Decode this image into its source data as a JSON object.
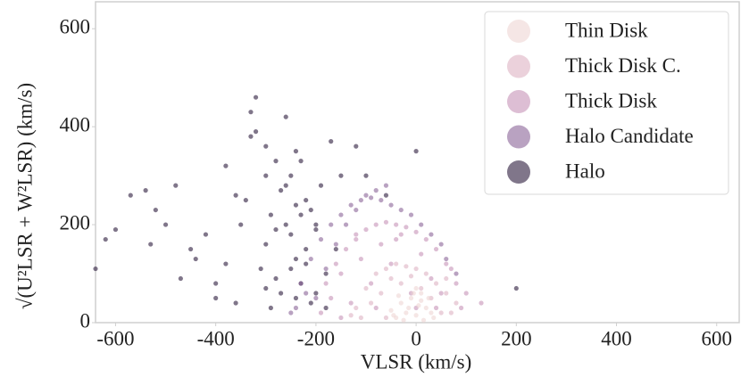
{
  "chart_data": {
    "type": "scatter",
    "x_label": "VLSR (km/s)",
    "y_label": "√(U²LSR + W²LSR) (km/s)",
    "xlim": [
      -640,
      645
    ],
    "ylim": [
      0,
      655
    ],
    "xticks": [
      -600,
      -400,
      -200,
      0,
      200,
      400,
      600
    ],
    "yticks": [
      0,
      200,
      400,
      600
    ],
    "grid": false,
    "legend": "upper right",
    "series": [
      {
        "name": "Thin Disk",
        "color": "#efd6d3",
        "x": [
          -40,
          -20,
          0,
          20,
          -30,
          -10,
          10,
          30,
          -50,
          -5,
          15,
          -25,
          5,
          25,
          -45,
          0,
          35,
          -15,
          10,
          -35
        ],
        "values": [
          10,
          20,
          15,
          30,
          40,
          50,
          45,
          20,
          25,
          60,
          5,
          5,
          35,
          50,
          15,
          70,
          10,
          30,
          60,
          55
        ]
      },
      {
        "name": "Thick Disk C.",
        "color": "#deb2c3",
        "x": [
          -120,
          -100,
          -80,
          -60,
          -40,
          -20,
          0,
          20,
          40,
          60,
          70,
          -110,
          -90,
          -70,
          -50,
          50,
          30,
          10,
          -10,
          -30,
          80,
          -130,
          60,
          -60
        ],
        "values": [
          30,
          70,
          100,
          110,
          120,
          115,
          110,
          100,
          80,
          60,
          20,
          10,
          40,
          60,
          90,
          20,
          50,
          70,
          95,
          80,
          40,
          15,
          90,
          10
        ]
      },
      {
        "name": "Thick Disk",
        "color": "#c693b8",
        "x": [
          -190,
          -180,
          -160,
          -140,
          -120,
          -100,
          -80,
          -60,
          -40,
          -20,
          0,
          20,
          40,
          60,
          80,
          90,
          -170,
          -150,
          -130,
          -110,
          -90,
          -70,
          -50,
          -30,
          -10,
          10,
          30,
          50,
          70,
          -150,
          -120,
          -80,
          -40,
          0,
          40,
          100,
          130
        ],
        "values": [
          20,
          80,
          120,
          150,
          170,
          190,
          200,
          205,
          200,
          195,
          185,
          170,
          150,
          120,
          80,
          30,
          50,
          100,
          40,
          130,
          80,
          160,
          120,
          180,
          60,
          140,
          90,
          60,
          110,
          10,
          180,
          30,
          170,
          30,
          30,
          60,
          40
        ]
      },
      {
        "name": "Halo Candidate",
        "color": "#8a6497",
        "x": [
          -250,
          -230,
          -210,
          -190,
          -170,
          -150,
          -130,
          -110,
          -90,
          -70,
          -50,
          -30,
          -10,
          10,
          30,
          50,
          -200,
          -180,
          -160,
          -140,
          -120,
          -100,
          -240,
          -220,
          60,
          80,
          -80,
          -60
        ],
        "values": [
          20,
          80,
          130,
          170,
          200,
          220,
          240,
          250,
          255,
          250,
          240,
          230,
          220,
          200,
          180,
          160,
          50,
          110,
          160,
          200,
          230,
          260,
          30,
          60,
          130,
          100,
          270,
          280
        ]
      },
      {
        "name": "Halo",
        "color": "#2c1a3c",
        "x": [
          -640,
          -620,
          -600,
          -570,
          -540,
          -520,
          -500,
          -480,
          -450,
          -420,
          -400,
          -380,
          -360,
          -340,
          -320,
          -300,
          -280,
          -260,
          -240,
          -220,
          -200,
          -180,
          -160,
          -330,
          -310,
          -290,
          -270,
          -250,
          -230,
          -210,
          -300,
          -280,
          -260,
          -240,
          -220,
          -200,
          -350,
          -380,
          -400,
          -270,
          -250,
          -230,
          -320,
          -290,
          -190,
          -170,
          -150,
          -260,
          -240,
          -220,
          -300,
          -330,
          -360,
          -210,
          -280,
          -250,
          -230,
          -440,
          -470,
          -530,
          -300,
          -240,
          -200,
          -180,
          0,
          200,
          -120,
          -100,
          -60
        ],
        "values": [
          110,
          170,
          190,
          260,
          270,
          230,
          200,
          280,
          150,
          180,
          80,
          320,
          40,
          250,
          460,
          300,
          90,
          200,
          350,
          120,
          60,
          30,
          150,
          380,
          110,
          220,
          270,
          180,
          80,
          40,
          160,
          330,
          280,
          130,
          250,
          190,
          200,
          120,
          50,
          60,
          300,
          220,
          390,
          30,
          280,
          370,
          300,
          420,
          240,
          150,
          70,
          430,
          260,
          230,
          190,
          110,
          330,
          130,
          90,
          160,
          360,
          50,
          200,
          100,
          350,
          70,
          360,
          300,
          260
        ]
      }
    ]
  }
}
